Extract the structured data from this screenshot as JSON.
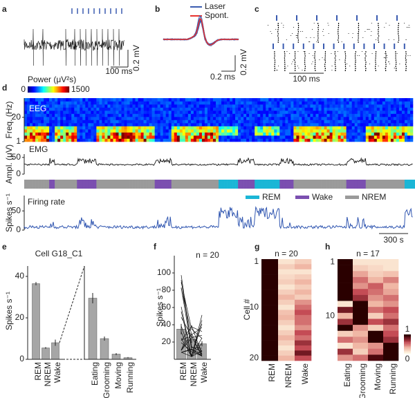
{
  "panel_labels": [
    "a",
    "b",
    "c",
    "d",
    "e",
    "f",
    "g",
    "h"
  ],
  "a": {
    "scale_x": "100 ms",
    "scale_y": "0.2 mV"
  },
  "b": {
    "legend": [
      {
        "name": "Laser",
        "color": "#3a5bb0"
      },
      {
        "name": "Spont.",
        "color": "#e8322d"
      }
    ],
    "scale_x": "0.2 ms",
    "scale_y": "0.2 mV"
  },
  "c": {
    "scale_x": "100 ms"
  },
  "d": {
    "colorbar_title": "Power (μV²s)",
    "colorbar_lim": [
      0,
      1500
    ],
    "colorbar_ticks": [
      0,
      1500
    ],
    "eeg": {
      "label": "EEG",
      "ylabel": "Freq. (Hz)",
      "ylim": [
        1,
        35
      ],
      "yticks": [
        1,
        20
      ]
    },
    "emg": {
      "label": "EMG",
      "ylabel": "Ampl. (μV)",
      "ylim": [
        0,
        60
      ],
      "yticks": [
        0,
        50
      ]
    },
    "states": [
      {
        "name": "REM",
        "color": "#1bb6d6"
      },
      {
        "name": "Wake",
        "color": "#7b4fb0"
      },
      {
        "name": "NREM",
        "color": "#9a9a9a"
      }
    ],
    "firing": {
      "label": "Firing rate",
      "ylabel": "Spikes s⁻¹",
      "ylim": [
        0,
        90
      ],
      "yticks": [
        0,
        50
      ],
      "color": "#2f55b0"
    },
    "scale_x": "300 s"
  },
  "e": {
    "title": "Cell G18_C1",
    "ylabel": "Spikes s⁻¹",
    "ylim": [
      0,
      45
    ],
    "yticks": [
      0,
      20,
      40
    ],
    "color": "#a6a6a6",
    "left": {
      "categories": [
        "REM",
        "NREM",
        "Wake"
      ],
      "values": [
        36.5,
        5.5,
        8
      ],
      "errors": [
        0.8,
        0.4,
        1.5
      ]
    },
    "right": {
      "categories": [
        "Eating",
        "Grooming",
        "Moving",
        "Running"
      ],
      "values": [
        29.5,
        10,
        2.5,
        0.8
      ],
      "errors": [
        2.5,
        1,
        0.5,
        0.3
      ]
    }
  },
  "f": {
    "title": "n = 20",
    "ylabel": "Spikes s⁻¹",
    "ylim": [
      0,
      120
    ],
    "yticks": [
      20,
      40,
      60,
      80,
      100
    ],
    "color": "#a6a6a6",
    "categories": [
      "REM",
      "NREM",
      "Wake"
    ],
    "values": [
      35,
      23,
      18
    ],
    "errors": [
      6,
      4,
      3
    ]
  },
  "g": {
    "title": "n = 20",
    "ylabel": "Cell #",
    "yticks": [
      1,
      10,
      20
    ],
    "categories": [
      "REM",
      "NREM",
      "Wake"
    ],
    "matrix": [
      [
        1,
        0.1,
        0.2
      ],
      [
        1,
        0.2,
        0.3
      ],
      [
        1,
        0.1,
        0.1
      ],
      [
        1,
        0.15,
        0.2
      ],
      [
        1,
        0.2,
        0.3
      ],
      [
        1,
        0.1,
        0.2
      ],
      [
        1,
        0.2,
        0.3
      ],
      [
        1,
        0.3,
        0.2
      ],
      [
        1,
        0.2,
        0.4
      ],
      [
        1,
        0.1,
        0.5
      ],
      [
        1,
        0.25,
        0.6
      ],
      [
        1,
        0.3,
        0.5
      ],
      [
        1,
        0.2,
        0.5
      ],
      [
        1,
        0.1,
        0.4
      ],
      [
        1,
        0.2,
        0.6
      ],
      [
        1,
        0.3,
        0.5
      ],
      [
        1,
        0.2,
        0.7
      ],
      [
        1,
        0.1,
        0.6
      ],
      [
        1,
        0.2,
        0.8
      ],
      [
        1,
        0.3,
        0.6
      ]
    ]
  },
  "h": {
    "title": "n = 17",
    "yticks": [
      1,
      10
    ],
    "categories": [
      "Eating",
      "Grooming",
      "Moving",
      "Running"
    ],
    "colorbar_ticks": [
      1,
      0
    ],
    "matrix": [
      [
        1,
        0.1,
        0.1,
        0.1
      ],
      [
        1,
        0.2,
        0.15,
        0.1
      ],
      [
        1,
        0.35,
        0.2,
        0.25
      ],
      [
        1,
        0.5,
        0.3,
        0.45
      ],
      [
        1,
        0.4,
        0.55,
        0.3
      ],
      [
        1,
        0.6,
        0.5,
        0.35
      ],
      [
        1,
        0.7,
        0.4,
        0.5
      ],
      [
        0.1,
        1,
        0.3,
        0.4
      ],
      [
        0.8,
        1,
        0.5,
        0.6
      ],
      [
        0.3,
        1,
        0.2,
        0.5
      ],
      [
        0.7,
        1,
        0.6,
        0.7
      ],
      [
        1,
        0.4,
        0.2,
        0.5
      ],
      [
        0.2,
        0.3,
        1,
        0.6
      ],
      [
        0.5,
        0.4,
        1,
        0.7
      ],
      [
        0.1,
        0.3,
        0.4,
        1
      ],
      [
        0.7,
        0.2,
        0.5,
        1
      ],
      [
        0.4,
        0.5,
        0.9,
        1
      ]
    ]
  }
}
